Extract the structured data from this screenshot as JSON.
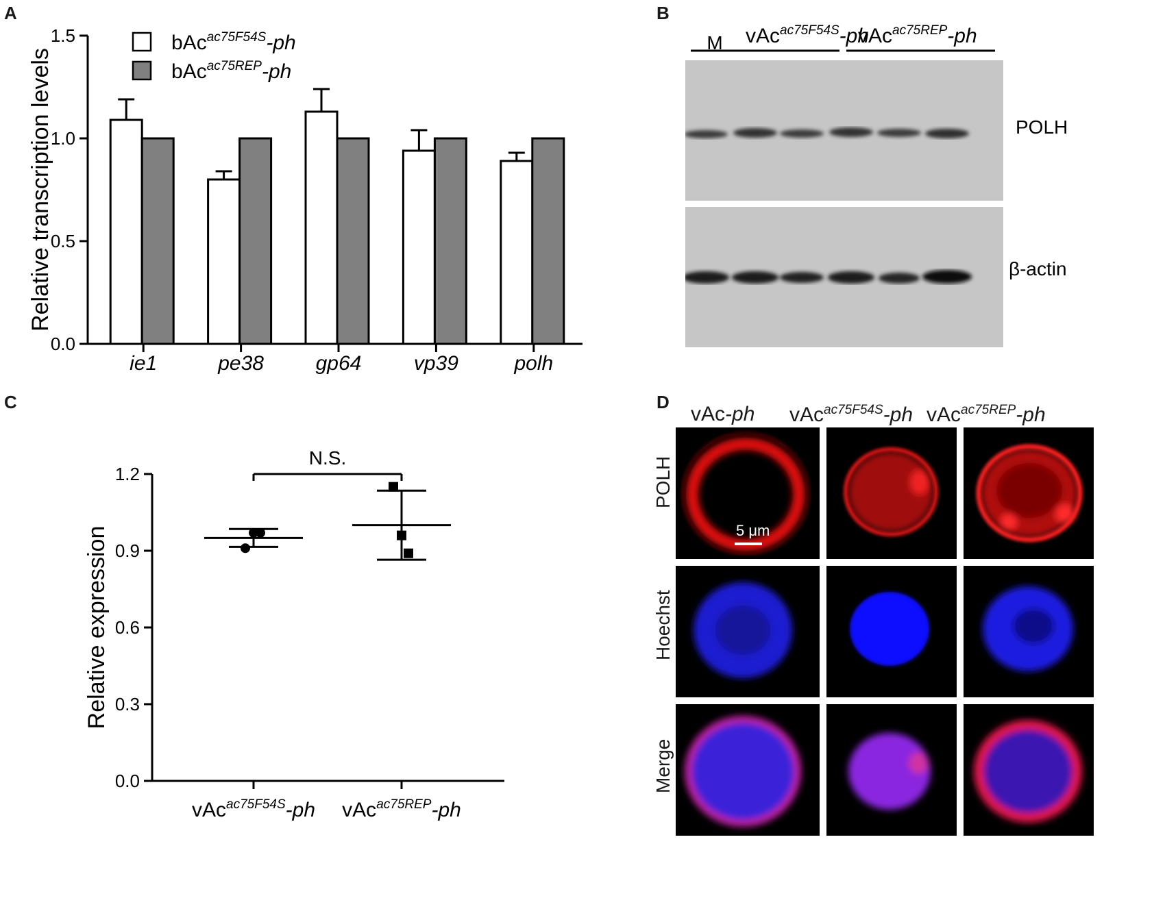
{
  "panel_letters": {
    "a": "A",
    "b": "B",
    "c": "C",
    "d": "D"
  },
  "colors": {
    "white_bar": "#ffffff",
    "gray_bar": "#808080",
    "red": "#ff1a1a",
    "blue": "#1a1aff"
  },
  "chart_data": [
    {
      "panel": "A",
      "type": "bar",
      "xlabel": "",
      "ylabel": "Relative transcription levels",
      "ylim": [
        0,
        1.5
      ],
      "yticks": [
        "0.0",
        "0.5",
        "1.0",
        "1.5"
      ],
      "categories": [
        "ie1",
        "pe38",
        "gp64",
        "vp39",
        "polh"
      ],
      "legend_position": "top-left",
      "series": [
        {
          "name_base": "bAc",
          "name_sup": "ac75F54S",
          "name_suffix": "-ph",
          "color": "#ffffff",
          "values": [
            1.09,
            0.8,
            1.13,
            0.94,
            0.89
          ],
          "errors": [
            0.1,
            0.04,
            0.11,
            0.1,
            0.04
          ]
        },
        {
          "name_base": "bAc",
          "name_sup": "ac75REP",
          "name_suffix": "-ph",
          "color": "#808080",
          "values": [
            1.0,
            1.0,
            1.0,
            1.0,
            1.0
          ],
          "errors": [
            0,
            0,
            0,
            0,
            0
          ]
        }
      ]
    },
    {
      "panel": "C",
      "type": "scatter",
      "xlabel": "",
      "ylabel": "Relative  expression",
      "ylim": [
        0,
        1.2
      ],
      "yticks": [
        "0.0",
        "0.3",
        "0.6",
        "0.9",
        "1.2"
      ],
      "annotation": "N.S.",
      "groups": [
        {
          "label_base": "vAc",
          "label_sup": "ac75F54S",
          "label_suffix": "-ph",
          "marker": "circle",
          "points": [
            0.91,
            0.97,
            0.97
          ],
          "mean": 0.95,
          "sd": 0.035
        },
        {
          "label_base": "vAc",
          "label_sup": "ac75REP",
          "label_suffix": "-ph",
          "marker": "square",
          "points": [
            1.15,
            0.96,
            0.89
          ],
          "mean": 1.0,
          "sd": 0.135
        }
      ]
    }
  ],
  "blot": {
    "marker_label": "M",
    "group1": {
      "base": "vAc",
      "sup": "ac75F54S",
      "suffix": "-ph"
    },
    "group2": {
      "base": "vAc",
      "sup": "ac75REP",
      "suffix": "-ph"
    },
    "top_label": "POLH",
    "bottom_label": "β-actin"
  },
  "microscopy": {
    "columns": [
      {
        "base": "vAc",
        "sup": "",
        "suffix": "-ph"
      },
      {
        "base": "vAc",
        "sup": "ac75F54S",
        "suffix": "-ph"
      },
      {
        "base": "vAc",
        "sup": "ac75REP",
        "suffix": "-ph"
      }
    ],
    "rows": [
      "POLH",
      "Hoechst",
      "Merge"
    ],
    "scale_bar": "5 μm"
  }
}
